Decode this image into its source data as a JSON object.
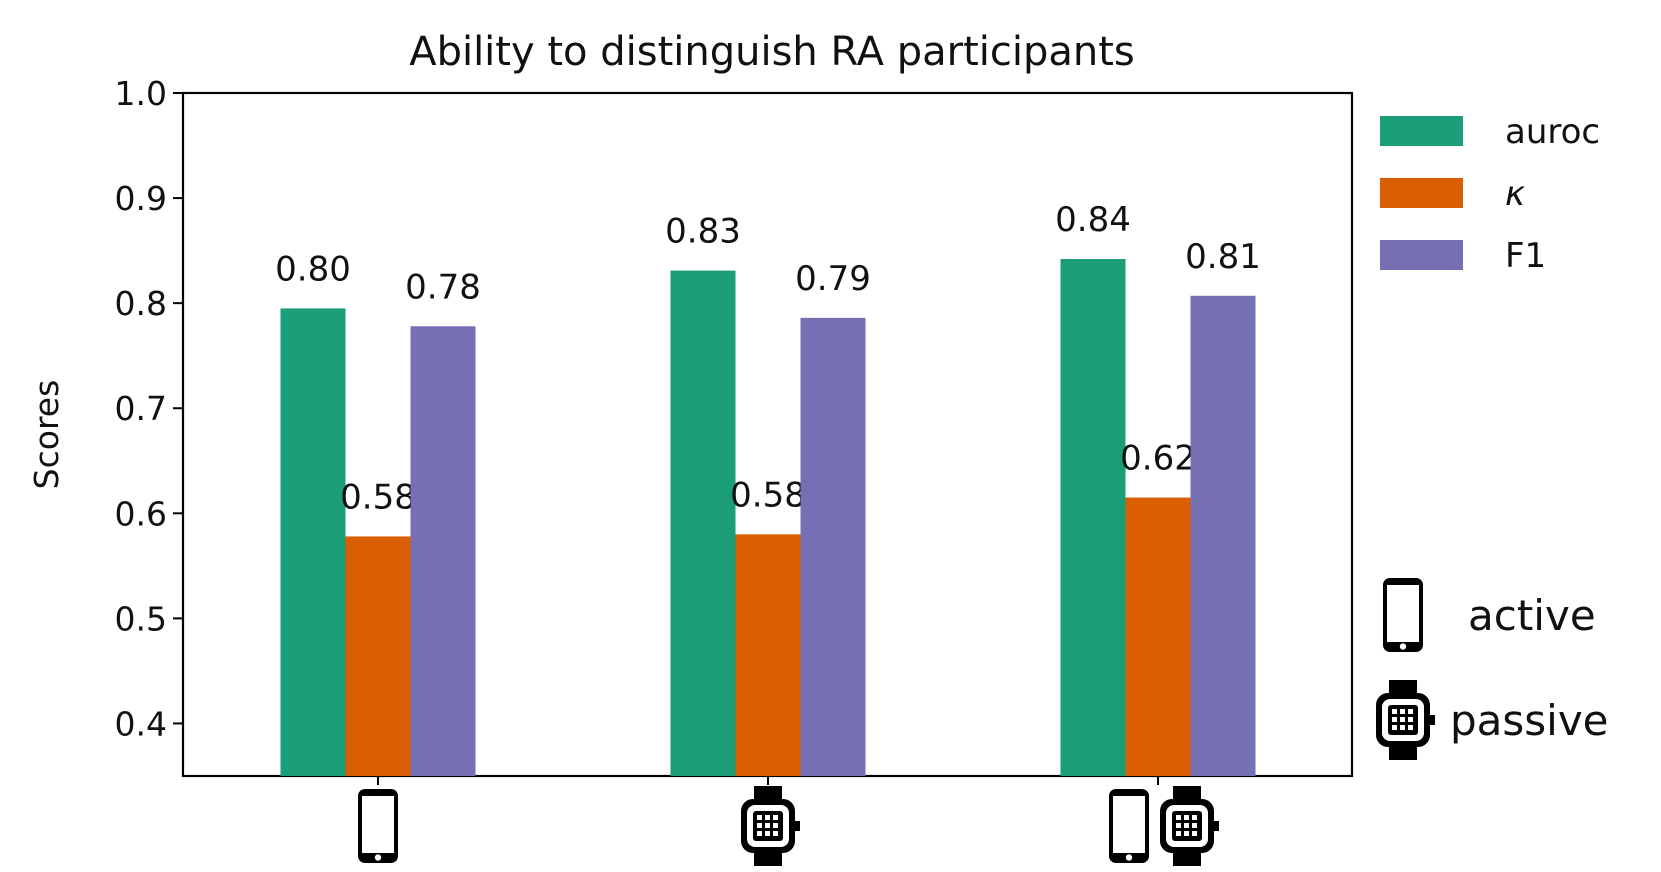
{
  "chart_data": {
    "type": "bar",
    "title": "Ability to distinguish RA participants",
    "xlabel": "",
    "ylabel": "Scores",
    "ylim": [
      0.35,
      1.0
    ],
    "yticks": [
      "0.4",
      "0.5",
      "0.6",
      "0.7",
      "0.8",
      "0.9",
      "1.0"
    ],
    "categories": [
      {
        "icons": [
          "phone-icon"
        ]
      },
      {
        "icons": [
          "smartwatch-icon"
        ]
      },
      {
        "icons": [
          "phone-icon",
          "smartwatch-icon"
        ]
      }
    ],
    "series": [
      {
        "name": "auroc",
        "color": "#1b9e77",
        "values": [
          0.795,
          0.831,
          0.842
        ],
        "labels": [
          "0.80",
          "0.83",
          "0.84"
        ]
      },
      {
        "name": "κ",
        "color": "#d95f02",
        "values": [
          0.578,
          0.58,
          0.615
        ],
        "labels": [
          "0.58",
          "0.58",
          "0.62"
        ]
      },
      {
        "name": "F1",
        "color": "#7570b3",
        "values": [
          0.778,
          0.786,
          0.807
        ],
        "labels": [
          "0.78",
          "0.79",
          "0.81"
        ]
      }
    ],
    "legend_position": "right",
    "grid": false,
    "icon_legend": [
      {
        "icon": "phone-icon",
        "label": "active"
      },
      {
        "icon": "smartwatch-icon",
        "label": "passive"
      }
    ]
  }
}
